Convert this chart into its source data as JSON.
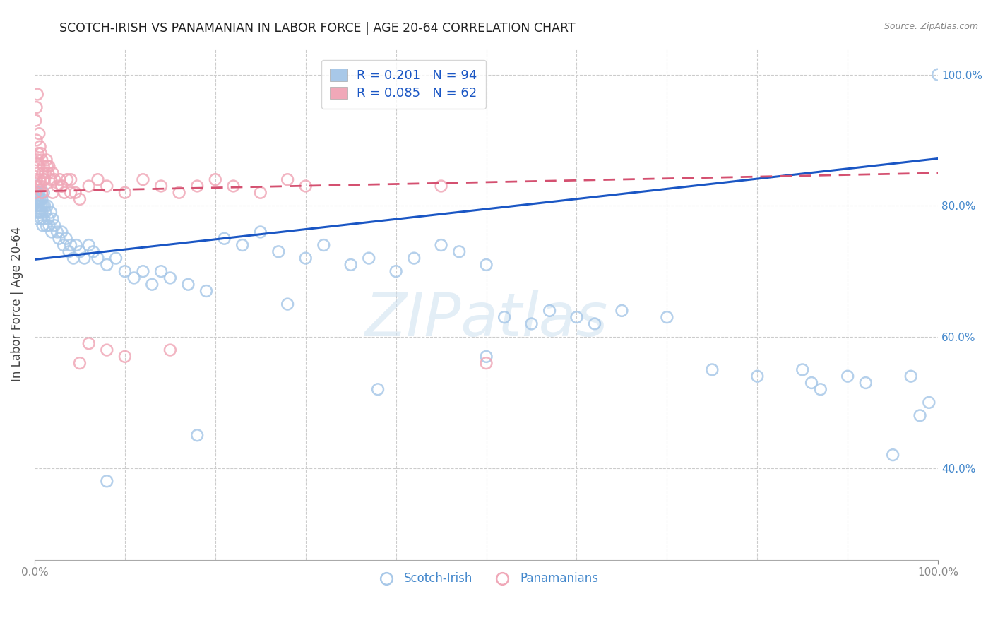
{
  "title": "SCOTCH-IRISH VS PANAMANIAN IN LABOR FORCE | AGE 20-64 CORRELATION CHART",
  "source": "Source: ZipAtlas.com",
  "ylabel": "In Labor Force | Age 20-64",
  "legend_blue_label": "R = 0.201   N = 94",
  "legend_pink_label": "R = 0.085   N = 62",
  "scotch_irish_color": "#a8c8e8",
  "panamanian_color": "#f0a8b8",
  "trend_blue": "#1a56c4",
  "trend_pink": "#d45070",
  "watermark": "ZIPatlas",
  "trend_blue_x0": 0.0,
  "trend_blue_y0": 0.718,
  "trend_blue_x1": 1.0,
  "trend_blue_y1": 0.872,
  "trend_pink_x0": 0.0,
  "trend_pink_y0": 0.822,
  "trend_pink_x1": 1.0,
  "trend_pink_y1": 0.85,
  "ylim_min": 0.26,
  "ylim_max": 1.04,
  "xlim_min": 0.0,
  "xlim_max": 1.0,
  "yticks": [
    0.4,
    0.6,
    0.8,
    1.0
  ],
  "xticks_labeled": [
    0.0,
    1.0
  ],
  "xticks_minor": [
    0.1,
    0.2,
    0.3,
    0.4,
    0.5,
    0.6,
    0.7,
    0.8,
    0.9
  ],
  "figsize": [
    14.06,
    8.92
  ],
  "dpi": 100,
  "scotch_irish_x": [
    0.001,
    0.001,
    0.002,
    0.002,
    0.002,
    0.003,
    0.003,
    0.003,
    0.003,
    0.004,
    0.004,
    0.005,
    0.005,
    0.006,
    0.006,
    0.007,
    0.007,
    0.008,
    0.008,
    0.009,
    0.009,
    0.01,
    0.01,
    0.011,
    0.012,
    0.013,
    0.014,
    0.015,
    0.016,
    0.018,
    0.019,
    0.02,
    0.022,
    0.025,
    0.027,
    0.03,
    0.032,
    0.035,
    0.038,
    0.04,
    0.043,
    0.046,
    0.05,
    0.055,
    0.06,
    0.065,
    0.07,
    0.08,
    0.09,
    0.1,
    0.11,
    0.12,
    0.13,
    0.14,
    0.15,
    0.17,
    0.19,
    0.21,
    0.23,
    0.25,
    0.27,
    0.3,
    0.32,
    0.35,
    0.37,
    0.4,
    0.42,
    0.45,
    0.47,
    0.5,
    0.52,
    0.55,
    0.57,
    0.6,
    0.62,
    0.65,
    0.7,
    0.75,
    0.8,
    0.85,
    0.86,
    0.87,
    0.9,
    0.92,
    0.95,
    0.97,
    0.98,
    0.99,
    1.0,
    0.5,
    0.38,
    0.28,
    0.18,
    0.08
  ],
  "scotch_irish_y": [
    0.82,
    0.81,
    0.83,
    0.8,
    0.79,
    0.82,
    0.81,
    0.8,
    0.78,
    0.81,
    0.79,
    0.82,
    0.8,
    0.81,
    0.79,
    0.8,
    0.78,
    0.81,
    0.79,
    0.8,
    0.77,
    0.82,
    0.78,
    0.8,
    0.79,
    0.77,
    0.8,
    0.78,
    0.77,
    0.79,
    0.76,
    0.78,
    0.77,
    0.76,
    0.75,
    0.76,
    0.74,
    0.75,
    0.73,
    0.74,
    0.72,
    0.74,
    0.73,
    0.72,
    0.74,
    0.73,
    0.72,
    0.71,
    0.72,
    0.7,
    0.69,
    0.7,
    0.68,
    0.7,
    0.69,
    0.68,
    0.67,
    0.75,
    0.74,
    0.76,
    0.73,
    0.72,
    0.74,
    0.71,
    0.72,
    0.7,
    0.72,
    0.74,
    0.73,
    0.71,
    0.63,
    0.62,
    0.64,
    0.63,
    0.62,
    0.64,
    0.63,
    0.55,
    0.54,
    0.55,
    0.53,
    0.52,
    0.54,
    0.53,
    0.42,
    0.54,
    0.48,
    0.5,
    1.0,
    0.57,
    0.52,
    0.65,
    0.45,
    0.38
  ],
  "panamanian_x": [
    0.001,
    0.001,
    0.002,
    0.002,
    0.002,
    0.003,
    0.003,
    0.003,
    0.004,
    0.004,
    0.005,
    0.005,
    0.006,
    0.006,
    0.007,
    0.007,
    0.008,
    0.008,
    0.009,
    0.01,
    0.011,
    0.012,
    0.013,
    0.014,
    0.015,
    0.016,
    0.018,
    0.02,
    0.022,
    0.025,
    0.028,
    0.03,
    0.033,
    0.036,
    0.04,
    0.045,
    0.05,
    0.06,
    0.07,
    0.08,
    0.1,
    0.12,
    0.14,
    0.16,
    0.18,
    0.2,
    0.22,
    0.25,
    0.28,
    0.3,
    0.005,
    0.01,
    0.02,
    0.03,
    0.04,
    0.05,
    0.06,
    0.08,
    0.1,
    0.15,
    0.45,
    0.5
  ],
  "panamanian_y": [
    0.93,
    0.82,
    0.95,
    0.9,
    0.84,
    0.97,
    0.87,
    0.83,
    0.85,
    0.88,
    0.91,
    0.86,
    0.89,
    0.84,
    0.88,
    0.83,
    0.87,
    0.82,
    0.85,
    0.86,
    0.84,
    0.85,
    0.87,
    0.86,
    0.85,
    0.86,
    0.84,
    0.85,
    0.84,
    0.83,
    0.84,
    0.83,
    0.82,
    0.84,
    0.84,
    0.82,
    0.81,
    0.83,
    0.84,
    0.83,
    0.82,
    0.84,
    0.83,
    0.82,
    0.83,
    0.84,
    0.83,
    0.82,
    0.84,
    0.83,
    0.83,
    0.84,
    0.82,
    0.83,
    0.82,
    0.56,
    0.59,
    0.58,
    0.57,
    0.58,
    0.83,
    0.56
  ]
}
